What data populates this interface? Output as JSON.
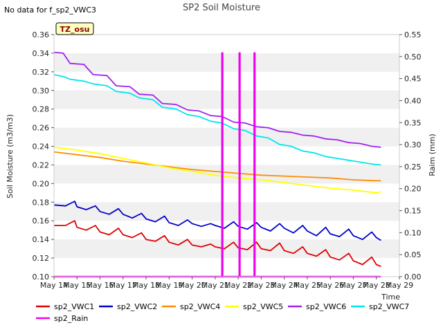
{
  "note": "No data for f_sp2_VWC3",
  "badge": "TZ_osu",
  "chart_data": {
    "type": "line",
    "title": "SP2 Soil Moisture",
    "xlabel": "Time",
    "ylabel": "Soil Moisture (m3/m3)",
    "y2label": "Raim (mm)",
    "xlim": [
      14,
      29
    ],
    "ylim": [
      0.1,
      0.36
    ],
    "y2lim": [
      0.0,
      0.55
    ],
    "x_ticks": [
      14,
      15,
      16,
      17,
      18,
      19,
      20,
      21,
      22,
      23,
      24,
      25,
      26,
      27,
      28,
      29
    ],
    "x_tick_labels": [
      "May 14",
      "May 15",
      "May 16",
      "May 17",
      "May 18",
      "May 19",
      "May 20",
      "May 21",
      "May 22",
      "May 23",
      "May 24",
      "May 25",
      "May 26",
      "May 27",
      "May 28",
      "May 29"
    ],
    "y_ticks": [
      0.1,
      0.12,
      0.14,
      0.16,
      0.18,
      0.2,
      0.22,
      0.24,
      0.26,
      0.28,
      0.3,
      0.32,
      0.34,
      0.36
    ],
    "y_tick_labels": [
      "0.10",
      "0.12",
      "0.14",
      "0.16",
      "0.18",
      "0.20",
      "0.22",
      "0.24",
      "0.26",
      "0.28",
      "0.30",
      "0.32",
      "0.34",
      "0.36"
    ],
    "y2_ticks": [
      0.0,
      0.05,
      0.1,
      0.15,
      0.2,
      0.25,
      0.3,
      0.35,
      0.4,
      0.45,
      0.5,
      0.55
    ],
    "y2_tick_labels": [
      "0.00",
      "0.05",
      "0.10",
      "0.15",
      "0.20",
      "0.25",
      "0.30",
      "0.35",
      "0.40",
      "0.45",
      "0.50",
      "0.55"
    ],
    "grid": "horizontal bands",
    "legend_position": "bottom",
    "series": [
      {
        "name": "sp2_VWC1",
        "color": "#dd0000",
        "axis": "left",
        "x": [
          14.0,
          14.5,
          14.9,
          15.0,
          15.4,
          15.8,
          16.0,
          16.4,
          16.8,
          17.0,
          17.4,
          17.8,
          18.0,
          18.4,
          18.8,
          19.0,
          19.4,
          19.8,
          20.0,
          20.4,
          20.8,
          21.0,
          21.4,
          21.8,
          22.0,
          22.4,
          22.8,
          23.0,
          23.4,
          23.8,
          24.0,
          24.4,
          24.8,
          25.0,
          25.4,
          25.8,
          26.0,
          26.4,
          26.8,
          27.0,
          27.4,
          27.8,
          28.0,
          28.2
        ],
        "y": [
          0.155,
          0.155,
          0.16,
          0.153,
          0.15,
          0.155,
          0.148,
          0.145,
          0.152,
          0.145,
          0.142,
          0.147,
          0.14,
          0.138,
          0.144,
          0.137,
          0.134,
          0.14,
          0.134,
          0.132,
          0.135,
          0.132,
          0.13,
          0.137,
          0.131,
          0.129,
          0.137,
          0.13,
          0.128,
          0.136,
          0.128,
          0.125,
          0.132,
          0.125,
          0.122,
          0.129,
          0.121,
          0.118,
          0.125,
          0.117,
          0.113,
          0.121,
          0.113,
          0.111
        ]
      },
      {
        "name": "sp2_VWC2",
        "color": "#0000cc",
        "axis": "left",
        "x": [
          14.0,
          14.5,
          14.9,
          15.0,
          15.4,
          15.8,
          16.0,
          16.4,
          16.8,
          17.0,
          17.4,
          17.8,
          18.0,
          18.4,
          18.8,
          19.0,
          19.4,
          19.8,
          20.0,
          20.4,
          20.8,
          21.0,
          21.4,
          21.8,
          22.0,
          22.4,
          22.8,
          23.0,
          23.4,
          23.8,
          24.0,
          24.4,
          24.8,
          25.0,
          25.4,
          25.8,
          26.0,
          26.4,
          26.8,
          27.0,
          27.4,
          27.8,
          28.0,
          28.2
        ],
        "y": [
          0.177,
          0.176,
          0.181,
          0.175,
          0.172,
          0.176,
          0.17,
          0.167,
          0.173,
          0.167,
          0.163,
          0.168,
          0.162,
          0.159,
          0.165,
          0.158,
          0.155,
          0.161,
          0.157,
          0.154,
          0.157,
          0.155,
          0.152,
          0.159,
          0.154,
          0.151,
          0.158,
          0.153,
          0.149,
          0.157,
          0.152,
          0.147,
          0.155,
          0.149,
          0.144,
          0.153,
          0.146,
          0.143,
          0.151,
          0.144,
          0.14,
          0.148,
          0.142,
          0.139
        ]
      },
      {
        "name": "sp2_VWC4",
        "color": "#ff8c00",
        "axis": "left",
        "x": [
          14.0,
          15.0,
          16.0,
          17.0,
          18.0,
          19.0,
          20.0,
          21.0,
          22.0,
          23.0,
          24.0,
          25.0,
          26.0,
          27.0,
          28.0,
          28.2
        ],
        "y": [
          0.234,
          0.231,
          0.228,
          0.224,
          0.221,
          0.218,
          0.215,
          0.213,
          0.211,
          0.209,
          0.208,
          0.207,
          0.206,
          0.204,
          0.203,
          0.203
        ]
      },
      {
        "name": "sp2_VWC5",
        "color": "#ffff00",
        "axis": "left",
        "x": [
          14.0,
          15.0,
          16.0,
          17.0,
          18.0,
          19.0,
          20.0,
          21.0,
          22.0,
          23.0,
          24.0,
          25.0,
          26.0,
          27.0,
          28.0,
          28.2
        ],
        "y": [
          0.239,
          0.236,
          0.232,
          0.227,
          0.222,
          0.217,
          0.213,
          0.209,
          0.206,
          0.204,
          0.201,
          0.198,
          0.195,
          0.193,
          0.19,
          0.191
        ]
      },
      {
        "name": "sp2_VWC6",
        "color": "#a020f0",
        "axis": "left",
        "x": [
          14.0,
          14.4,
          14.7,
          15.3,
          15.7,
          16.3,
          16.7,
          17.3,
          17.7,
          18.3,
          18.7,
          19.3,
          19.8,
          20.3,
          20.8,
          21.3,
          21.8,
          22.3,
          22.8,
          23.3,
          23.8,
          24.3,
          24.8,
          25.3,
          25.8,
          26.3,
          26.8,
          27.3,
          27.8,
          28.2
        ],
        "y": [
          0.341,
          0.34,
          0.329,
          0.328,
          0.317,
          0.316,
          0.305,
          0.304,
          0.296,
          0.295,
          0.286,
          0.285,
          0.279,
          0.278,
          0.273,
          0.272,
          0.266,
          0.265,
          0.261,
          0.26,
          0.256,
          0.255,
          0.252,
          0.251,
          0.248,
          0.247,
          0.244,
          0.243,
          0.24,
          0.239
        ]
      },
      {
        "name": "sp2_VWC7",
        "color": "#00e5ee",
        "axis": "left",
        "x": [
          14.0,
          14.4,
          14.7,
          15.3,
          15.7,
          16.3,
          16.7,
          17.3,
          17.7,
          18.3,
          18.7,
          19.3,
          19.8,
          20.3,
          20.8,
          21.3,
          21.8,
          22.3,
          22.8,
          23.3,
          23.8,
          24.3,
          24.8,
          25.3,
          25.8,
          26.3,
          26.8,
          27.3,
          27.8,
          28.2
        ],
        "y": [
          0.317,
          0.315,
          0.312,
          0.31,
          0.307,
          0.305,
          0.299,
          0.297,
          0.292,
          0.29,
          0.282,
          0.28,
          0.274,
          0.272,
          0.267,
          0.265,
          0.259,
          0.257,
          0.251,
          0.249,
          0.242,
          0.24,
          0.235,
          0.233,
          0.229,
          0.227,
          0.225,
          0.223,
          0.221,
          0.22
        ]
      },
      {
        "name": "sp2_Rain",
        "color": "#ee00ee",
        "axis": "right",
        "x": [
          14.0,
          21.3,
          21.3,
          21.32,
          21.32,
          22.05,
          22.05,
          22.07,
          22.07,
          22.7,
          22.7,
          22.72,
          22.72,
          28.2
        ],
        "y": [
          0.0,
          0.0,
          0.508,
          0.508,
          0.0,
          0.0,
          0.508,
          0.508,
          0.0,
          0.0,
          0.508,
          0.508,
          0.0,
          0.0
        ]
      }
    ]
  }
}
